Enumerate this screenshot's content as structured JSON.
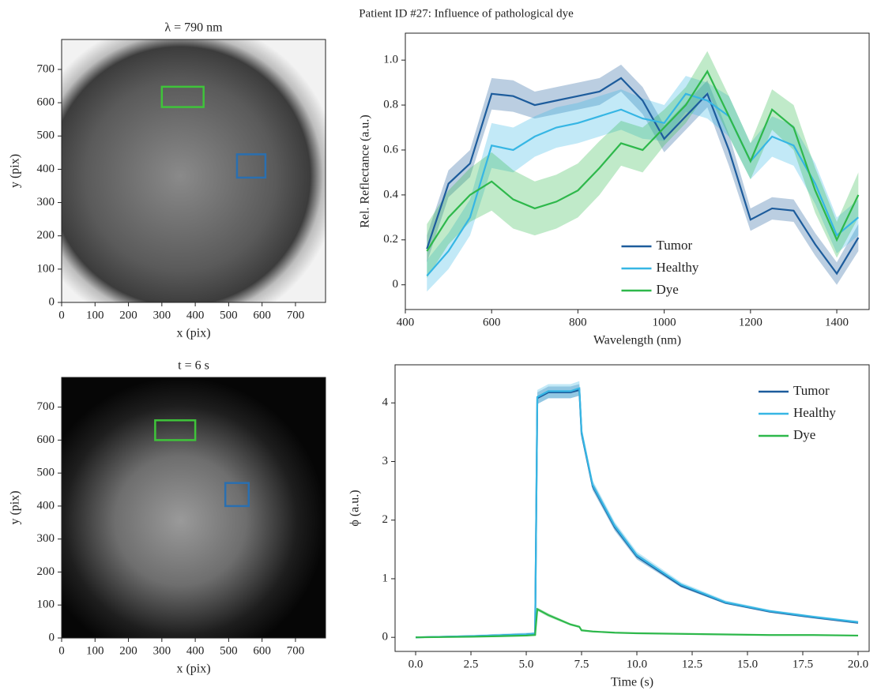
{
  "title": "Patient ID #27: Influence of pathological dye",
  "chart_data": [
    {
      "type": "image",
      "title": "λ = 790 nm",
      "xlabel": "x (pix)",
      "ylabel": "y (pix)",
      "xlim": [
        0,
        790
      ],
      "ylim": [
        0,
        790
      ],
      "xticks": [
        0,
        100,
        200,
        300,
        400,
        500,
        600,
        700
      ],
      "yticks": [
        0,
        100,
        200,
        300,
        400,
        500,
        600,
        700
      ],
      "colormap": "bright",
      "regions": [
        {
          "color": "#3fc43a",
          "x": [
            300,
            425
          ],
          "y": [
            587,
            648
          ]
        },
        {
          "color": "#2a6fb0",
          "x": [
            525,
            610
          ],
          "y": [
            375,
            445
          ]
        }
      ]
    },
    {
      "type": "line",
      "xlabel": "Wavelength (nm)",
      "ylabel": "Rel. Reflectance (a.u.)",
      "xlim": [
        400,
        1475
      ],
      "ylim": [
        -0.11,
        1.12
      ],
      "xticks": [
        400,
        600,
        800,
        1000,
        1200,
        1400
      ],
      "yticks": [
        0,
        0.2,
        0.4,
        0.6,
        0.8,
        {
          "value": 1,
          "label": "1.0"
        }
      ],
      "legend": "lower center",
      "x": [
        450,
        500,
        550,
        600,
        650,
        700,
        750,
        800,
        850,
        900,
        950,
        1000,
        1050,
        1100,
        1150,
        1200,
        1250,
        1300,
        1350,
        1400,
        1450
      ],
      "series": [
        {
          "name": "Tumor",
          "color": "#1d5c9c",
          "values": [
            0.16,
            0.45,
            0.54,
            0.85,
            0.84,
            0.8,
            0.82,
            0.84,
            0.86,
            0.92,
            0.82,
            0.65,
            0.75,
            0.85,
            0.6,
            0.29,
            0.34,
            0.33,
            0.18,
            0.05,
            0.21
          ],
          "errors": [
            0.06,
            0.06,
            0.06,
            0.07,
            0.07,
            0.06,
            0.06,
            0.06,
            0.06,
            0.06,
            0.06,
            0.06,
            0.06,
            0.06,
            0.07,
            0.05,
            0.05,
            0.05,
            0.05,
            0.05,
            0.06
          ]
        },
        {
          "name": "Healthy",
          "color": "#36b6e4",
          "values": [
            0.04,
            0.15,
            0.3,
            0.62,
            0.6,
            0.66,
            0.7,
            0.72,
            0.75,
            0.78,
            0.74,
            0.72,
            0.85,
            0.82,
            0.75,
            0.55,
            0.66,
            0.62,
            0.45,
            0.22,
            0.3
          ],
          "errors": [
            0.07,
            0.08,
            0.08,
            0.1,
            0.1,
            0.09,
            0.09,
            0.09,
            0.09,
            0.09,
            0.09,
            0.08,
            0.08,
            0.08,
            0.09,
            0.08,
            0.09,
            0.09,
            0.09,
            0.08,
            0.08
          ]
        },
        {
          "name": "Dye",
          "color": "#2eb84b",
          "values": [
            0.15,
            0.3,
            0.4,
            0.46,
            0.38,
            0.34,
            0.37,
            0.42,
            0.52,
            0.63,
            0.6,
            0.7,
            0.8,
            0.95,
            0.75,
            0.55,
            0.78,
            0.7,
            0.42,
            0.2,
            0.4
          ],
          "errors": [
            0.12,
            0.12,
            0.12,
            0.13,
            0.13,
            0.12,
            0.12,
            0.12,
            0.12,
            0.1,
            0.1,
            0.08,
            0.08,
            0.09,
            0.09,
            0.08,
            0.09,
            0.1,
            0.1,
            0.08,
            0.1
          ]
        }
      ]
    },
    {
      "type": "image",
      "title": "t = 6 s",
      "xlabel": "x (pix)",
      "ylabel": "y (pix)",
      "xlim": [
        0,
        790
      ],
      "ylim": [
        0,
        790
      ],
      "xticks": [
        0,
        100,
        200,
        300,
        400,
        500,
        600,
        700
      ],
      "yticks": [
        0,
        100,
        200,
        300,
        400,
        500,
        600,
        700
      ],
      "colormap": "dark",
      "regions": [
        {
          "color": "#3fc43a",
          "x": [
            280,
            400
          ],
          "y": [
            600,
            660
          ]
        },
        {
          "color": "#2a6fb0",
          "x": [
            490,
            560
          ],
          "y": [
            400,
            470
          ]
        }
      ]
    },
    {
      "type": "line",
      "xlabel": "Time (s)",
      "ylabel": "ϕ (a.u.)",
      "xlim": [
        -0.93,
        20.5
      ],
      "ylim": [
        -0.24,
        4.65
      ],
      "xticks": [
        {
          "value": 0,
          "label": "0.0"
        },
        2.5,
        {
          "value": 5,
          "label": "5.0"
        },
        7.5,
        {
          "value": 10,
          "label": "10.0"
        },
        12.5,
        {
          "value": 15,
          "label": "15.0"
        },
        17.5,
        {
          "value": 20,
          "label": "20.0"
        }
      ],
      "yticks": [
        0,
        1,
        2,
        3,
        4
      ],
      "legend": "upper right",
      "x": [
        0,
        2.5,
        5,
        5.4,
        5.5,
        6,
        7,
        7.4,
        7.5,
        8,
        9,
        10,
        12,
        14,
        16,
        18,
        20
      ],
      "series": [
        {
          "name": "Tumor",
          "color": "#1d5c9c",
          "values": [
            0,
            0.02,
            0.05,
            0.06,
            4.08,
            4.18,
            4.18,
            4.22,
            3.48,
            2.58,
            1.88,
            1.38,
            0.88,
            0.59,
            0.44,
            0.34,
            0.25
          ],
          "errors": [
            0.01,
            0.01,
            0.02,
            0.02,
            0.1,
            0.1,
            0.1,
            0.1,
            0.08,
            0.07,
            0.06,
            0.05,
            0.03,
            0.02,
            0.02,
            0.02,
            0.02
          ]
        },
        {
          "name": "Healthy",
          "color": "#36b6e4",
          "values": [
            0,
            0.02,
            0.05,
            0.06,
            4.1,
            4.2,
            4.2,
            4.25,
            3.5,
            2.6,
            1.9,
            1.4,
            0.9,
            0.6,
            0.45,
            0.35,
            0.26
          ],
          "errors": [
            0.01,
            0.02,
            0.03,
            0.03,
            0.12,
            0.12,
            0.12,
            0.12,
            0.1,
            0.08,
            0.07,
            0.06,
            0.04,
            0.03,
            0.02,
            0.02,
            0.02
          ]
        },
        {
          "name": "Dye",
          "color": "#2eb84b",
          "values": [
            0,
            0.01,
            0.03,
            0.04,
            0.48,
            0.38,
            0.22,
            0.18,
            0.12,
            0.1,
            0.08,
            0.07,
            0.06,
            0.05,
            0.04,
            0.04,
            0.03
          ],
          "errors": [
            0.01,
            0.01,
            0.01,
            0.01,
            0.03,
            0.03,
            0.02,
            0.02,
            0.01,
            0.01,
            0.01,
            0.01,
            0.01,
            0.01,
            0.01,
            0.01,
            0.01
          ]
        }
      ]
    }
  ]
}
